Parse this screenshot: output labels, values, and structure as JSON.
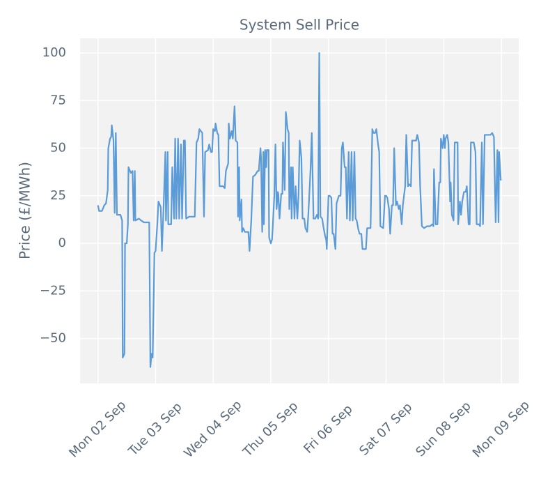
{
  "chart_data": {
    "type": "line",
    "title": "System Sell Price",
    "y_label": "Price (£/MWh)",
    "color": "#5b9bd8",
    "grid": true,
    "xlim": [
      -0.31,
      7.3
    ],
    "ylim": [
      -73.6,
      107.7
    ],
    "xticks": [
      {
        "value": 0,
        "label": "Mon 02 Sep"
      },
      {
        "value": 1,
        "label": "Tue 03 Sep"
      },
      {
        "value": 2,
        "label": "Wed 04 Sep"
      },
      {
        "value": 3,
        "label": "Thu 05 Sep"
      },
      {
        "value": 4,
        "label": "Fri 06 Sep"
      },
      {
        "value": 5,
        "label": "Sat 07 Sep"
      },
      {
        "value": 6,
        "label": "Sun 08 Sep"
      },
      {
        "value": 7,
        "label": "Mon 09 Sep"
      }
    ],
    "yticks": [
      {
        "value": -50,
        "label": "−50"
      },
      {
        "value": -25,
        "label": "−25"
      },
      0,
      25,
      50,
      75,
      100
    ],
    "x": [
      0,
      0.02,
      0.07,
      0.11,
      0.14,
      0.17,
      0.18,
      0.21,
      0.23,
      0.24,
      0.27,
      0.29,
      0.31,
      0.33,
      0.39,
      0.42,
      0.43,
      0.46,
      0.47,
      0.5,
      0.52,
      0.53,
      0.57,
      0.6,
      0.62,
      0.64,
      0.65,
      0.71,
      0.75,
      0.8,
      0.87,
      0.89,
      0.91,
      0.93,
      0.95,
      0.98,
      1.0,
      1.03,
      1.05,
      1.09,
      1.11,
      1.14,
      1.17,
      1.18,
      1.21,
      1.22,
      1.27,
      1.29,
      1.32,
      1.34,
      1.36,
      1.39,
      1.41,
      1.44,
      1.46,
      1.49,
      1.51,
      1.53,
      1.58,
      1.68,
      1.71,
      1.74,
      1.76,
      1.81,
      1.84,
      1.86,
      1.91,
      1.93,
      1.96,
      1.98,
      2.0,
      2.03,
      2.04,
      2.07,
      2.09,
      2.11,
      2.17,
      2.2,
      2.22,
      2.26,
      2.27,
      2.29,
      2.32,
      2.34,
      2.37,
      2.39,
      2.42,
      2.43,
      2.45,
      2.46,
      2.49,
      2.5,
      2.52,
      2.55,
      2.58,
      2.61,
      2.63,
      2.66,
      2.69,
      2.73,
      2.77,
      2.79,
      2.82,
      2.83,
      2.85,
      2.87,
      2.88,
      2.9,
      2.92,
      2.93,
      2.96,
      2.97,
      3.0,
      3.02,
      3.03,
      3.06,
      3.08,
      3.1,
      3.12,
      3.13,
      3.15,
      3.18,
      3.2,
      3.21,
      3.24,
      3.26,
      3.29,
      3.31,
      3.32,
      3.35,
      3.36,
      3.38,
      3.41,
      3.43,
      3.46,
      3.48,
      3.5,
      3.53,
      3.55,
      3.58,
      3.6,
      3.63,
      3.65,
      3.69,
      3.71,
      3.74,
      3.77,
      3.8,
      3.82,
      3.84,
      3.86,
      3.89,
      3.91,
      3.94,
      3.96,
      3.97,
      4.0,
      4.02,
      4.05,
      4.07,
      4.09,
      4.12,
      4.14,
      4.18,
      4.21,
      4.23,
      4.25,
      4.28,
      4.3,
      4.32,
      4.35,
      4.37,
      4.4,
      4.42,
      4.45,
      4.47,
      4.49,
      4.52,
      4.54,
      4.57,
      4.59,
      4.65,
      4.67,
      4.73,
      4.76,
      4.78,
      4.81,
      4.83,
      4.86,
      4.88,
      4.9,
      4.95,
      4.98,
      5.0,
      5.02,
      5.05,
      5.07,
      5.1,
      5.12,
      5.14,
      5.17,
      5.19,
      5.22,
      5.24,
      5.27,
      5.29,
      5.33,
      5.35,
      5.38,
      5.4,
      5.43,
      5.45,
      5.5,
      5.52,
      5.54,
      5.57,
      5.59,
      5.62,
      5.66,
      5.71,
      5.76,
      5.8,
      5.82,
      5.83,
      5.86,
      5.89,
      5.92,
      5.94,
      5.95,
      5.98,
      6.0,
      6.02,
      6.03,
      6.06,
      6.08,
      6.11,
      6.12,
      6.14,
      6.17,
      6.19,
      6.22,
      6.24,
      6.25,
      6.28,
      6.3,
      6.32,
      6.35,
      6.38,
      6.4,
      6.43,
      6.45,
      6.47,
      6.52,
      6.55,
      6.57,
      6.61,
      6.63,
      6.66,
      6.68,
      6.71,
      6.76,
      6.81,
      6.84,
      6.87,
      6.9,
      6.93,
      6.95,
      6.96,
      6.99
    ],
    "values": [
      20,
      17,
      17,
      20,
      21,
      28,
      50,
      55,
      56,
      62,
      54,
      16,
      58,
      15,
      15,
      12,
      -60,
      -58,
      0,
      0,
      10,
      40,
      37,
      38,
      12,
      38,
      12,
      13,
      12,
      11,
      11,
      11,
      -65,
      -58,
      -60,
      -5,
      -4,
      10,
      22,
      19,
      -4,
      20,
      48,
      12,
      48,
      10,
      10,
      40,
      13,
      55,
      13,
      55,
      13,
      52,
      13,
      54,
      54,
      13,
      14,
      14,
      53,
      55,
      60,
      58,
      14,
      48,
      49,
      52,
      48,
      48,
      60,
      59,
      63,
      58,
      57,
      30,
      30,
      29,
      38,
      42,
      63,
      55,
      59,
      55,
      72,
      54,
      53,
      14,
      40,
      12,
      23,
      6,
      8,
      6,
      6,
      6,
      -4,
      12,
      35,
      36,
      38,
      38,
      50,
      45,
      6,
      48,
      10,
      49,
      40,
      49,
      49,
      3,
      0,
      2,
      7,
      25,
      52,
      18,
      27,
      26,
      13,
      26,
      26,
      53,
      28,
      69,
      60,
      58,
      18,
      40,
      13,
      40,
      13,
      30,
      13,
      25,
      54,
      45,
      13,
      13,
      8,
      6,
      15,
      40,
      58,
      13,
      13,
      15,
      13,
      100,
      14,
      13,
      9,
      4,
      2,
      -3,
      25,
      25,
      24,
      5,
      5,
      -3,
      21,
      25,
      25,
      50,
      53,
      40,
      40,
      13,
      48,
      12,
      48,
      12,
      48,
      13,
      12,
      7,
      5,
      5,
      -3,
      -3,
      8,
      8,
      60,
      58,
      58,
      60,
      52,
      48,
      9,
      8,
      25,
      25,
      24,
      18,
      5,
      20,
      20,
      50,
      20,
      22,
      18,
      20,
      10,
      20,
      30,
      57,
      30,
      31,
      30,
      54,
      54,
      54,
      57,
      53,
      30,
      9,
      8,
      9,
      9,
      10,
      9,
      39,
      10,
      10,
      32,
      32,
      55,
      50,
      57,
      50,
      55,
      57,
      53,
      22,
      32,
      15,
      12,
      53,
      53,
      53,
      10,
      22,
      15,
      22,
      27,
      27,
      30,
      10,
      10,
      53,
      53,
      48,
      10,
      10,
      9,
      53,
      10,
      57,
      57,
      57,
      58,
      56,
      11,
      49,
      11,
      48,
      33
    ]
  }
}
